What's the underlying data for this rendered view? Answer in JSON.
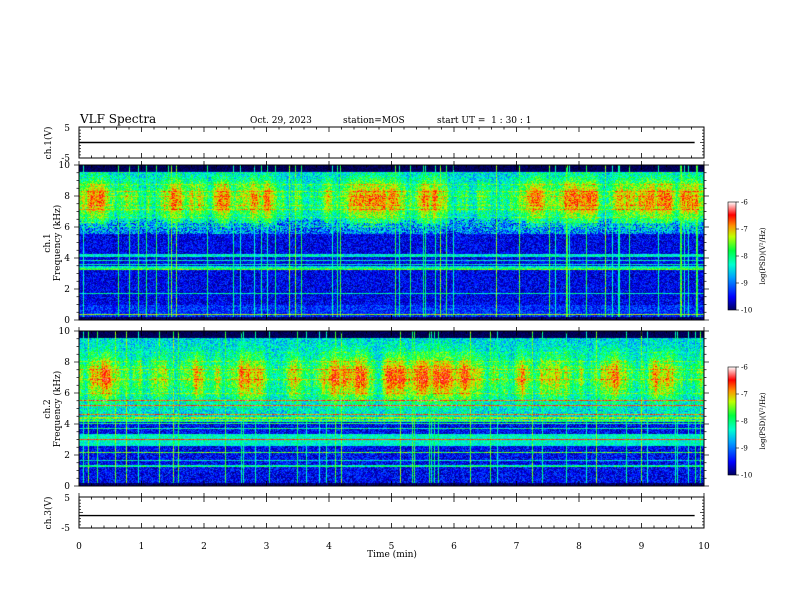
{
  "header": {
    "title": "VLF Spectra",
    "date": "Oct. 29, 2023",
    "station": "station=MOS",
    "start": "start UT =  1 : 30 : 1"
  },
  "colors": {
    "colormap": [
      "#000000",
      "#00008c",
      "#0000ff",
      "#0080ff",
      "#00e0ff",
      "#00ff80",
      "#80ff00",
      "#ffff00",
      "#ff8000",
      "#ff0000",
      "#ffffff"
    ],
    "trace": "#000000"
  },
  "chart_data": [
    {
      "type": "line",
      "panel": "ch1-waveform",
      "ylabel": "ch.1(V)",
      "ylim": [
        -5,
        5
      ],
      "yticks": [
        "5",
        "-5"
      ],
      "x": [
        0,
        9.85
      ],
      "y": [
        0,
        0
      ]
    },
    {
      "type": "heatmap",
      "panel": "ch1-spectrogram",
      "ylabel": "Frequency (kHz)",
      "ylabel_channel": "ch.1",
      "ylim": [
        0,
        10
      ],
      "yticks": [
        "0",
        "2",
        "4",
        "6",
        "8",
        "10"
      ],
      "colorbar": {
        "label": "log(PSD)(V²/Hz)",
        "range": [
          -10,
          -6
        ],
        "ticks": [
          "-6",
          "-7",
          "-8",
          "-9",
          "-10"
        ]
      }
    },
    {
      "type": "heatmap",
      "panel": "ch2-spectrogram",
      "ylabel": "Frequency (kHz)",
      "ylabel_channel": "ch.2",
      "ylim": [
        0,
        10
      ],
      "yticks": [
        "0",
        "2",
        "4",
        "6",
        "8",
        "10"
      ],
      "colorbar": {
        "label": "log(PSD)(V²/Hz)",
        "range": [
          -10,
          -6
        ],
        "ticks": [
          "-6",
          "-7",
          "-8",
          "-9",
          "-10"
        ]
      }
    },
    {
      "type": "line",
      "panel": "ch3-waveform",
      "ylabel": "ch.3(V)",
      "ylim": [
        -5,
        5
      ],
      "yticks": [
        "5",
        "-5"
      ],
      "x": [
        0,
        9.85
      ],
      "y": [
        -1,
        -1
      ]
    }
  ],
  "xaxis": {
    "label": "Time (min)",
    "range": [
      0,
      10
    ],
    "ticks": [
      "0",
      "1",
      "2",
      "3",
      "4",
      "5",
      "6",
      "7",
      "8",
      "9",
      "10"
    ]
  }
}
